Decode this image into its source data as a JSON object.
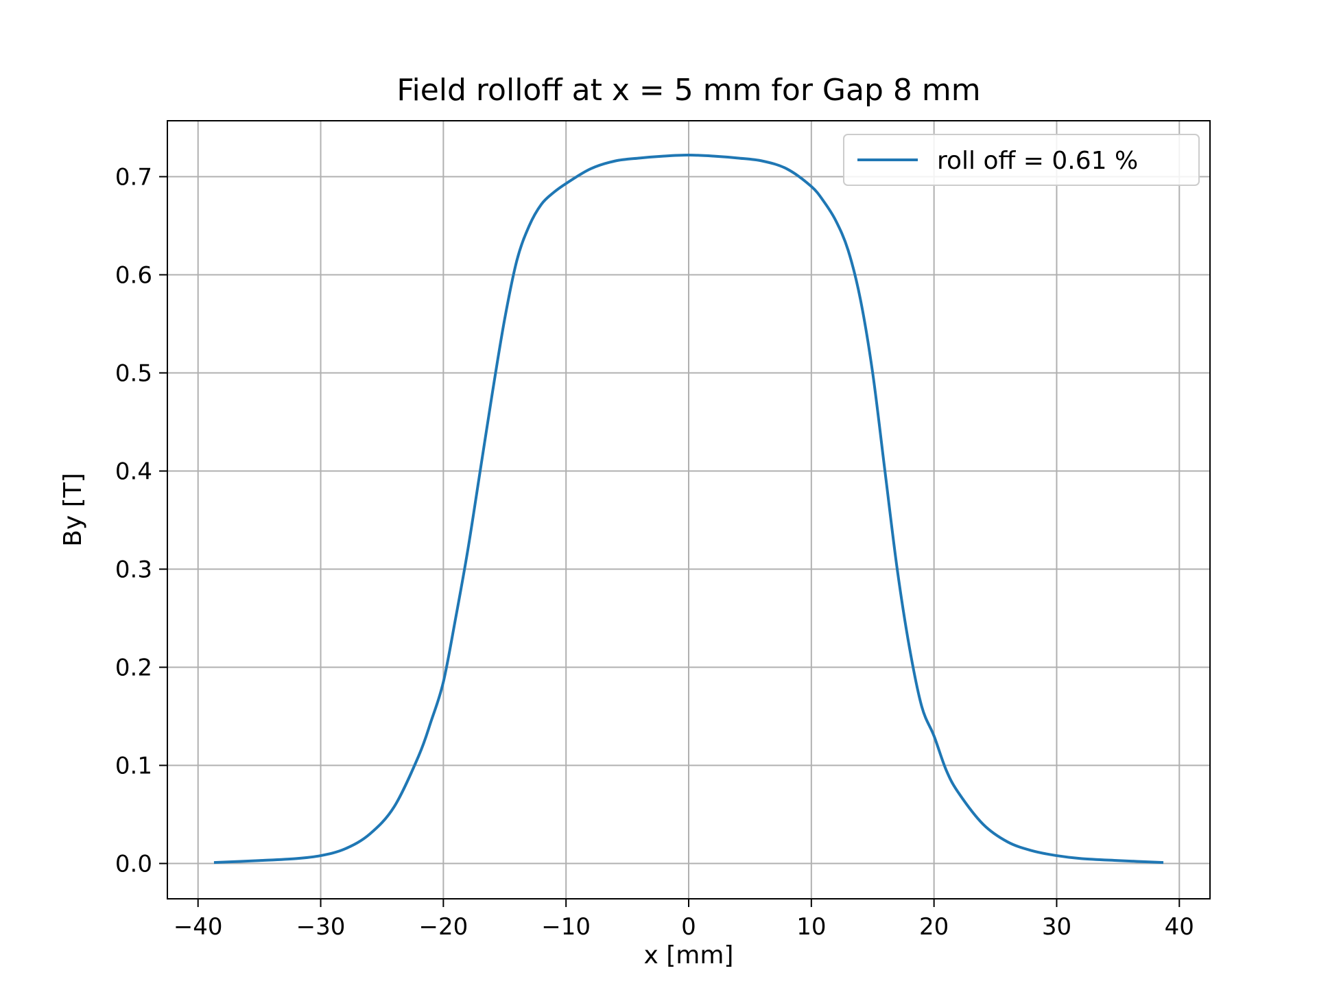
{
  "chart_data": {
    "type": "line",
    "title": "Field rolloff at x = 5 mm for Gap 8 mm",
    "xlabel": "x [mm]",
    "ylabel": "By [T]",
    "xlim": [
      -42.5,
      42.5
    ],
    "ylim": [
      -0.036,
      0.757
    ],
    "xticks": [
      -40,
      -30,
      -20,
      -10,
      0,
      10,
      20,
      30,
      40
    ],
    "xtick_labels": [
      "−40",
      "−30",
      "−20",
      "−10",
      "0",
      "10",
      "20",
      "30",
      "40"
    ],
    "yticks": [
      0.0,
      0.1,
      0.2,
      0.3,
      0.4,
      0.5,
      0.6,
      0.7
    ],
    "ytick_labels": [
      "0.0",
      "0.1",
      "0.2",
      "0.3",
      "0.4",
      "0.5",
      "0.6",
      "0.7"
    ],
    "grid": true,
    "legend_position": "top-right",
    "series": [
      {
        "name": "roll off = 0.61 %",
        "color": "#1f77b4",
        "x": [
          -38.7,
          -35,
          -32,
          -30,
          -28,
          -26,
          -24,
          -22,
          -21,
          -20,
          -19,
          -18,
          -17,
          -16,
          -15,
          -14,
          -13,
          -12,
          -11,
          -10,
          -8,
          -6,
          -4,
          -2,
          0,
          2,
          4,
          6,
          8,
          10,
          11,
          12,
          13,
          14,
          15,
          16,
          17,
          18,
          19,
          20,
          21,
          22,
          24,
          26,
          28,
          30,
          32,
          35,
          38.7
        ],
        "y": [
          0.001,
          0.003,
          0.005,
          0.008,
          0.015,
          0.03,
          0.058,
          0.11,
          0.145,
          0.185,
          0.25,
          0.32,
          0.4,
          0.48,
          0.555,
          0.615,
          0.65,
          0.672,
          0.684,
          0.693,
          0.708,
          0.716,
          0.719,
          0.721,
          0.722,
          0.721,
          0.719,
          0.716,
          0.708,
          0.69,
          0.675,
          0.655,
          0.625,
          0.575,
          0.5,
          0.4,
          0.3,
          0.22,
          0.16,
          0.13,
          0.095,
          0.072,
          0.04,
          0.022,
          0.013,
          0.008,
          0.005,
          0.003,
          0.001
        ]
      }
    ]
  }
}
